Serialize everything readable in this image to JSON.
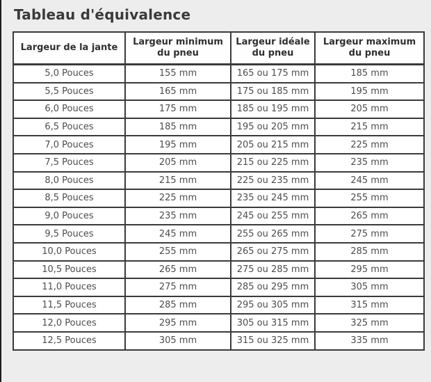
{
  "page": {
    "title": "Tableau d'équivalence"
  },
  "table": {
    "headers": [
      "Largeur de la jante",
      "Largeur minimum du pneu",
      "Largeur idéale du pneu",
      "Largeur maximum du pneu"
    ],
    "rows": [
      [
        "5,0 Pouces",
        "155 mm",
        "165 ou 175 mm",
        "185 mm"
      ],
      [
        "5,5 Pouces",
        "165 mm",
        "175 ou 185 mm",
        "195 mm"
      ],
      [
        "6,0 Pouces",
        "175 mm",
        "185 ou 195 mm",
        "205 mm"
      ],
      [
        "6,5 Pouces",
        "185 mm",
        "195 ou 205 mm",
        "215 mm"
      ],
      [
        "7,0 Pouces",
        "195 mm",
        "205 ou 215 mm",
        "225 mm"
      ],
      [
        "7,5 Pouces",
        "205 mm",
        "215 ou 225 mm",
        "235 mm"
      ],
      [
        "8,0 Pouces",
        "215 mm",
        "225 ou 235 mm",
        "245 mm"
      ],
      [
        "8,5 Pouces",
        "225 mm",
        "235 ou 245 mm",
        "255 mm"
      ],
      [
        "9,0 Pouces",
        "235 mm",
        "245 ou 255 mm",
        "265 mm"
      ],
      [
        "9,5 Pouces",
        "245 mm",
        "255 ou 265 mm",
        "275 mm"
      ],
      [
        "10,0 Pouces",
        "255 mm",
        "265 ou 275 mm",
        "285 mm"
      ],
      [
        "10,5 Pouces",
        "265 mm",
        "275 ou 285 mm",
        "295 mm"
      ],
      [
        "11,0 Pouces",
        "275 mm",
        "285 ou 295 mm",
        "305 mm"
      ],
      [
        "11,5 Pouces",
        "285 mm",
        "295 ou 305 mm",
        "315 mm"
      ],
      [
        "12,0 Pouces",
        "295 mm",
        "305 ou 315 mm",
        "325 mm"
      ],
      [
        "12,5 Pouces",
        "305 mm",
        "315 ou 325 mm",
        "335 mm"
      ]
    ]
  },
  "colors": {
    "page_background": "#ededed",
    "page_left_border": "#1d1d1d",
    "table_border": "#3a3a3a",
    "cell_background": "#ffffff",
    "title_text": "#3a3a3a",
    "header_text": "#2f2f2f",
    "cell_text": "#4d4d4d"
  }
}
